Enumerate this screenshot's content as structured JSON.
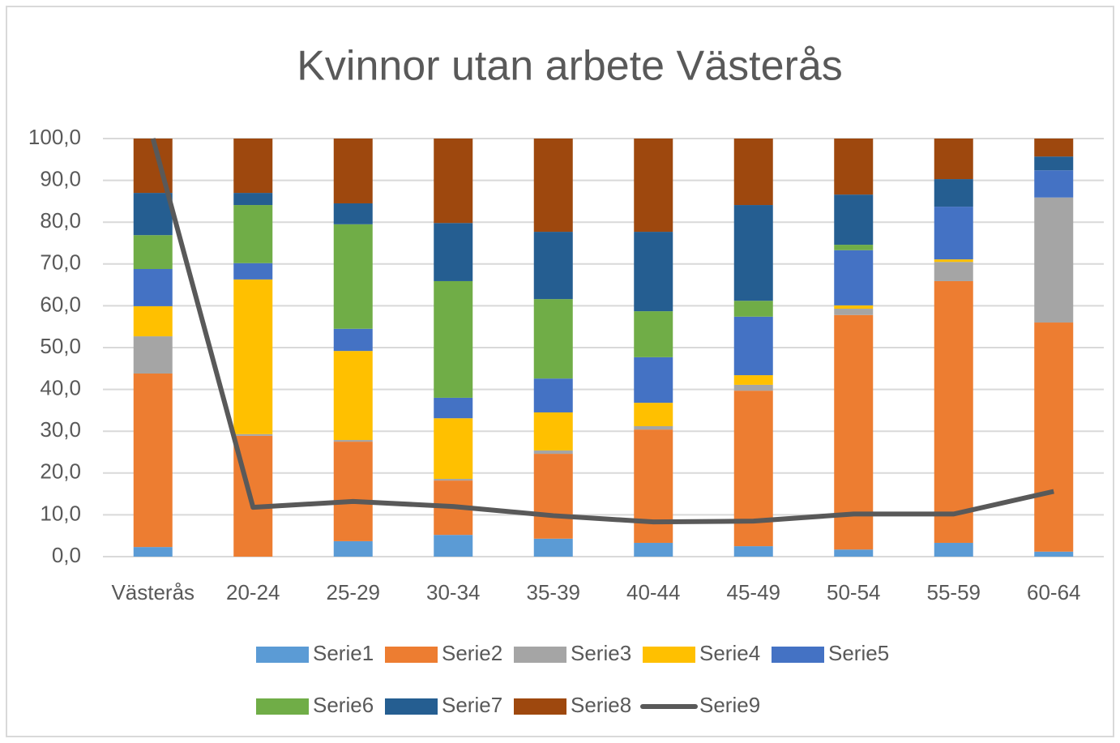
{
  "chart_data": {
    "type": "stacked-bar-line",
    "title": "Kvinnor utan arbete Västerås",
    "categories": [
      "Västerås",
      "20-24",
      "25-29",
      "30-34",
      "35-39",
      "40-44",
      "45-49",
      "50-54",
      "55-59",
      "60-64"
    ],
    "series": [
      {
        "name": "Serie1",
        "color": "#5b9bd5",
        "type": "bar",
        "values": [
          2.3,
          0,
          3.7,
          5.2,
          4.3,
          3.3,
          2.5,
          1.7,
          3.3,
          1.2
        ]
      },
      {
        "name": "Serie2",
        "color": "#ed7d31",
        "type": "bar",
        "values": [
          41.5,
          28.9,
          23.8,
          13.0,
          20.3,
          27.1,
          37.2,
          56.1,
          62.6,
          54.8
        ]
      },
      {
        "name": "Serie3",
        "color": "#a5a5a5",
        "type": "bar",
        "values": [
          8.9,
          0.4,
          0.4,
          0.4,
          0.8,
          0.8,
          1.4,
          1.5,
          4.6,
          29.9
        ]
      },
      {
        "name": "Serie4",
        "color": "#ffc000",
        "type": "bar",
        "values": [
          7.2,
          37.0,
          21.3,
          14.5,
          9.1,
          5.6,
          2.3,
          0.8,
          0.6,
          0
        ]
      },
      {
        "name": "Serie5",
        "color": "#4472c4",
        "type": "bar",
        "values": [
          8.9,
          3.9,
          5.3,
          4.9,
          8.1,
          10.9,
          14.0,
          13.2,
          12.6,
          6.5
        ]
      },
      {
        "name": "Serie6",
        "color": "#70ad47",
        "type": "bar",
        "values": [
          8.1,
          13.9,
          25.0,
          27.9,
          19.0,
          11.0,
          3.8,
          1.3,
          0,
          0
        ]
      },
      {
        "name": "Serie7",
        "color": "#255e91",
        "type": "bar",
        "values": [
          10.1,
          2.9,
          5.0,
          13.9,
          16.1,
          19.0,
          22.9,
          12.0,
          6.6,
          3.3
        ]
      },
      {
        "name": "Serie8",
        "color": "#9e480e",
        "type": "bar",
        "values": [
          13.0,
          13.0,
          15.5,
          20.2,
          22.3,
          22.3,
          15.9,
          13.4,
          9.7,
          4.3
        ]
      },
      {
        "name": "Serie9",
        "color": "#595959",
        "type": "line",
        "values": [
          100,
          11.8,
          13.2,
          12.0,
          9.8,
          8.3,
          8.5,
          10.2,
          10.2,
          15.6
        ]
      }
    ],
    "ylim": [
      0,
      100
    ],
    "yticks": [
      {
        "value": 0,
        "label": "0,0"
      },
      {
        "value": 10,
        "label": "10,0"
      },
      {
        "value": 20,
        "label": "20,0"
      },
      {
        "value": 30,
        "label": "30,0"
      },
      {
        "value": 40,
        "label": "40,0"
      },
      {
        "value": 50,
        "label": "50,0"
      },
      {
        "value": 60,
        "label": "60,0"
      },
      {
        "value": 70,
        "label": "70,0"
      },
      {
        "value": 80,
        "label": "80,0"
      },
      {
        "value": 90,
        "label": "90,0"
      },
      {
        "value": 100,
        "label": "100,0"
      }
    ],
    "grid": true,
    "legend": "bottom"
  }
}
